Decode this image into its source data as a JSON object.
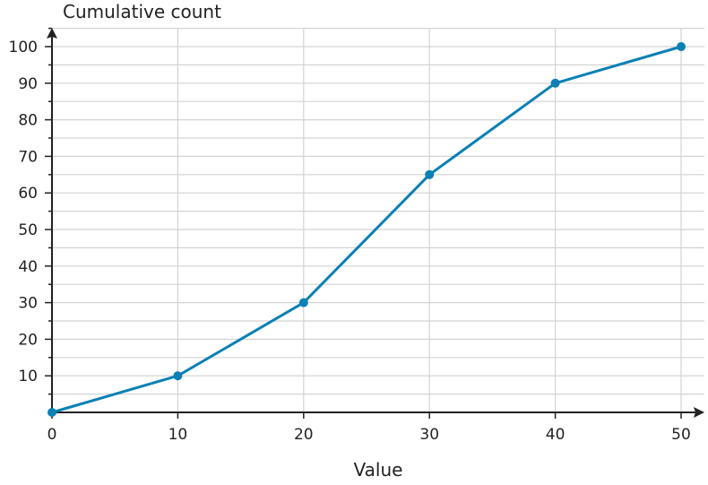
{
  "chart_data": {
    "type": "line",
    "title": "",
    "xlabel": "Value",
    "ylabel": "Cumulative count",
    "xlim": [
      0,
      50
    ],
    "ylim": [
      0,
      100
    ],
    "x_ticks": [
      0,
      10,
      20,
      30,
      40,
      50
    ],
    "y_ticks": [
      10,
      20,
      30,
      40,
      50,
      60,
      70,
      80,
      90,
      100
    ],
    "grid": true,
    "series": [
      {
        "x": [
          0,
          10,
          20,
          30,
          40,
          50
        ],
        "y": [
          0,
          10,
          30,
          65,
          90,
          100
        ],
        "color": "#0b80b4"
      }
    ],
    "colors": {
      "line": "#0b80b4",
      "grid": "#d3d3d3",
      "axis": "#222222"
    }
  }
}
